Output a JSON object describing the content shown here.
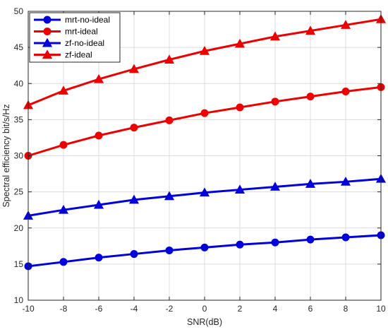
{
  "chart_data": {
    "type": "line",
    "title": "",
    "xlabel": "SNR(dB)",
    "ylabel": "Spectral efficiency bit/s/Hz",
    "xlim": [
      -10,
      10
    ],
    "ylim": [
      10,
      50
    ],
    "xticks": [
      -10,
      -8,
      -6,
      -4,
      -2,
      0,
      2,
      4,
      6,
      8,
      10
    ],
    "yticks": [
      10,
      15,
      20,
      25,
      30,
      35,
      40,
      45,
      50
    ],
    "grid": true,
    "legend_position": "top-left",
    "x": [
      -10,
      -8,
      -6,
      -4,
      -2,
      0,
      2,
      4,
      6,
      8,
      10
    ],
    "series": [
      {
        "name": "mrt-no-ideal",
        "color": "#0000dd",
        "marker": "circle",
        "values": [
          14.7,
          15.3,
          15.9,
          16.4,
          16.9,
          17.3,
          17.7,
          18.0,
          18.4,
          18.7,
          19.0
        ]
      },
      {
        "name": "mrt-ideal",
        "color": "#ee0000",
        "marker": "circle",
        "values": [
          30.0,
          31.5,
          32.8,
          33.9,
          34.9,
          35.9,
          36.7,
          37.5,
          38.2,
          38.9,
          39.5
        ]
      },
      {
        "name": "zf-no-ideal",
        "color": "#0000dd",
        "marker": "triangle",
        "values": [
          21.7,
          22.5,
          23.2,
          23.9,
          24.4,
          24.9,
          25.3,
          25.7,
          26.1,
          26.4,
          26.8
        ]
      },
      {
        "name": "zf-ideal",
        "color": "#ee0000",
        "marker": "triangle",
        "values": [
          37.0,
          39.0,
          40.6,
          42.0,
          43.3,
          44.5,
          45.5,
          46.5,
          47.3,
          48.1,
          48.9
        ]
      }
    ]
  }
}
